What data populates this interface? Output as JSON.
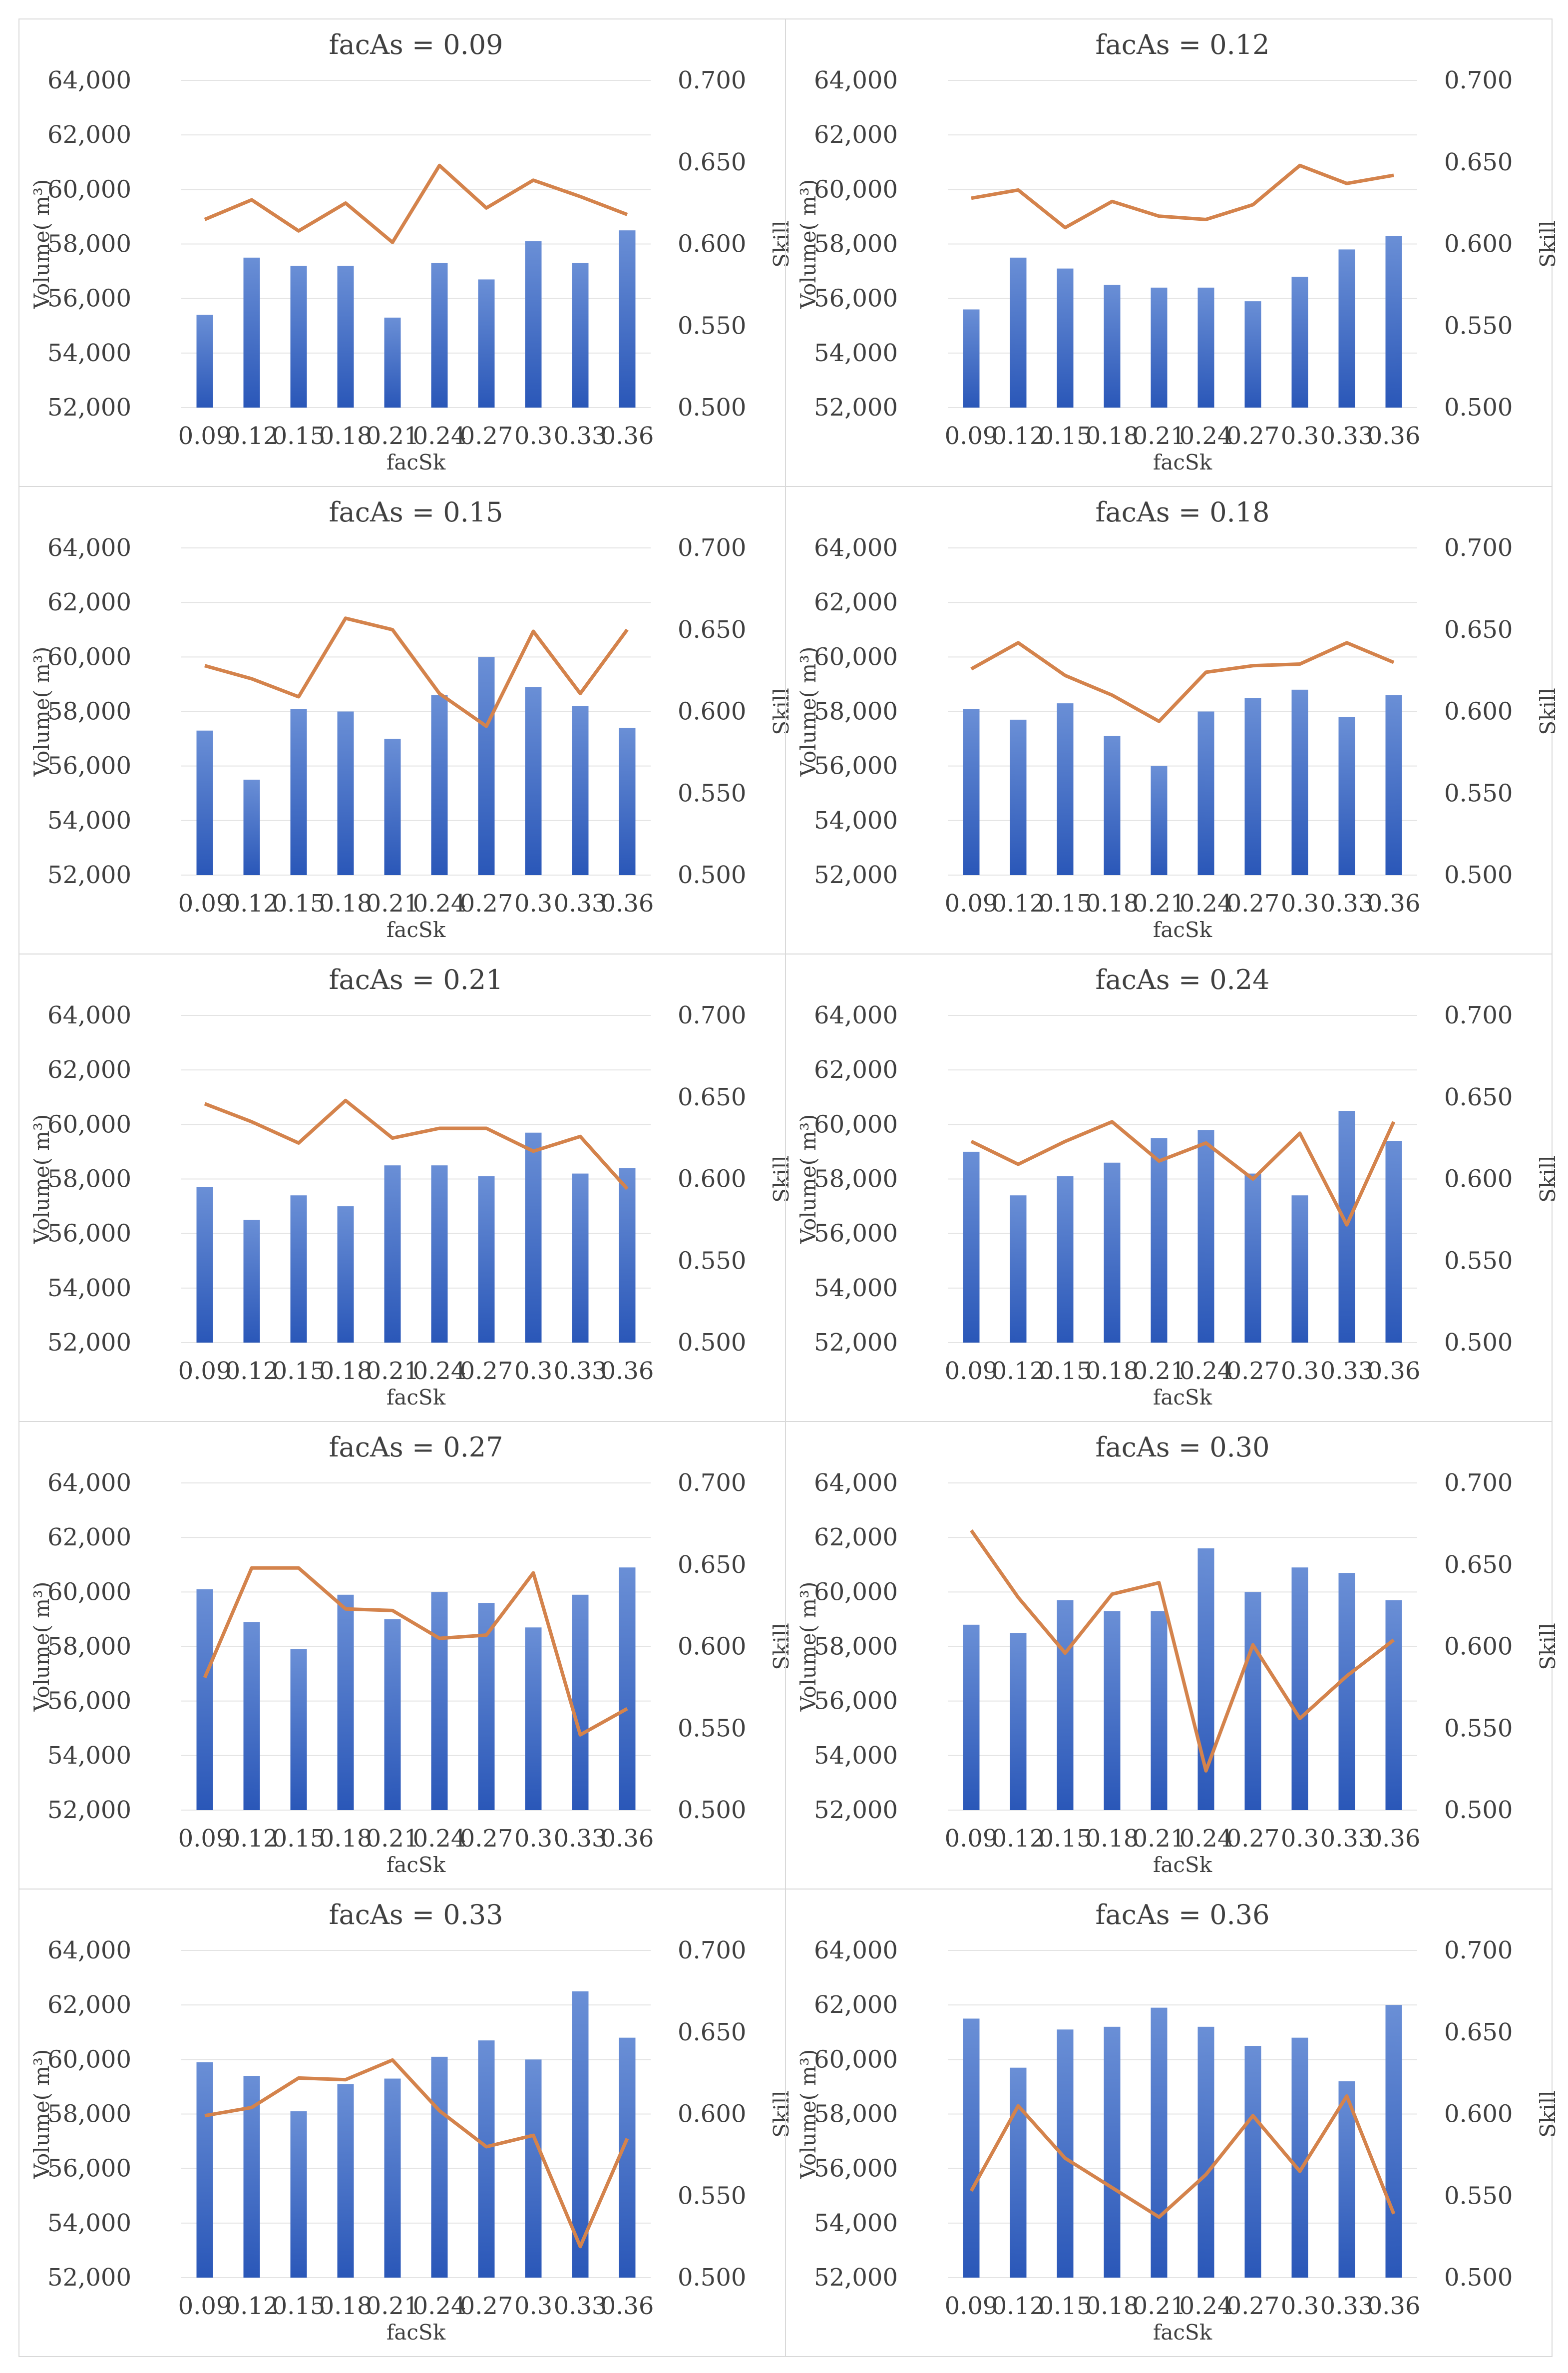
{
  "figure": {
    "y_left_label": "Volume( m³)",
    "y_right_label": "Skill",
    "x_label": "facSk",
    "colors": {
      "bar_top": "#6a8fd6",
      "bar_bottom": "#2a57b8",
      "line": "#d4834c"
    }
  },
  "chart_data": [
    {
      "type": "bar+line",
      "title": "facAs = 0.09",
      "categories": [
        "0.09",
        "0.12",
        "0.15",
        "0.18",
        "0.21",
        "0.24",
        "0.27",
        "0.3",
        "0.33",
        "0.36"
      ],
      "bars": [
        55400,
        57500,
        57200,
        57200,
        55300,
        57300,
        56700,
        58100,
        57300,
        58500
      ],
      "line": [
        0.615,
        0.627,
        0.608,
        0.625,
        0.601,
        0.648,
        0.622,
        0.639,
        0.629,
        0.618
      ],
      "ylim_left": [
        52000,
        64000
      ],
      "yticks_left": [
        "52,000",
        "54,000",
        "56,000",
        "58,000",
        "60,000",
        "62,000",
        "64,000"
      ],
      "ylim_right": [
        0.5,
        0.7
      ],
      "yticks_right": [
        "0.500",
        "0.550",
        "0.600",
        "0.650",
        "0.700"
      ],
      "xlabel": "facSk",
      "ylabel_left": "Volume( m³)",
      "ylabel_right": "Skill"
    },
    {
      "type": "bar+line",
      "title": "facAs = 0.12",
      "categories": [
        "0.09",
        "0.12",
        "0.15",
        "0.18",
        "0.21",
        "0.24",
        "0.27",
        "0.3",
        "0.33",
        "0.36"
      ],
      "bars": [
        55600,
        57500,
        57100,
        56500,
        56400,
        56400,
        55900,
        56800,
        57800,
        58300
      ],
      "line": [
        0.628,
        0.633,
        0.61,
        0.626,
        0.617,
        0.615,
        0.624,
        0.648,
        0.637,
        0.642
      ],
      "ylim_left": [
        52000,
        64000
      ],
      "yticks_left": [
        "52,000",
        "54,000",
        "56,000",
        "58,000",
        "60,000",
        "62,000",
        "64,000"
      ],
      "ylim_right": [
        0.5,
        0.7
      ],
      "yticks_right": [
        "0.500",
        "0.550",
        "0.600",
        "0.650",
        "0.700"
      ],
      "xlabel": "facSk",
      "ylabel_left": "Volume( m³)",
      "ylabel_right": "Skill"
    },
    {
      "type": "bar+line",
      "title": "facAs = 0.15",
      "categories": [
        "0.09",
        "0.12",
        "0.15",
        "0.18",
        "0.21",
        "0.24",
        "0.27",
        "0.3",
        "0.33",
        "0.36"
      ],
      "bars": [
        57300,
        55500,
        58100,
        58000,
        57000,
        58600,
        60000,
        58900,
        58200,
        57400
      ],
      "line": [
        0.628,
        0.62,
        0.609,
        0.657,
        0.65,
        0.611,
        0.591,
        0.649,
        0.611,
        0.65
      ],
      "ylim_left": [
        52000,
        64000
      ],
      "yticks_left": [
        "52,000",
        "54,000",
        "56,000",
        "58,000",
        "60,000",
        "62,000",
        "64,000"
      ],
      "ylim_right": [
        0.5,
        0.7
      ],
      "yticks_right": [
        "0.500",
        "0.550",
        "0.600",
        "0.650",
        "0.700"
      ],
      "xlabel": "facSk",
      "ylabel_left": "Volume( m³)",
      "ylabel_right": "Skill"
    },
    {
      "type": "bar+line",
      "title": "facAs = 0.18",
      "categories": [
        "0.09",
        "0.12",
        "0.15",
        "0.18",
        "0.21",
        "0.24",
        "0.27",
        "0.3",
        "0.33",
        "0.36"
      ],
      "bars": [
        58100,
        57700,
        58300,
        57100,
        56000,
        58000,
        58500,
        58800,
        57800,
        58600
      ],
      "line": [
        0.626,
        0.642,
        0.622,
        0.61,
        0.594,
        0.624,
        0.628,
        0.629,
        0.642,
        0.63
      ],
      "ylim_left": [
        52000,
        64000
      ],
      "yticks_left": [
        "52,000",
        "54,000",
        "56,000",
        "58,000",
        "60,000",
        "62,000",
        "64,000"
      ],
      "ylim_right": [
        0.5,
        0.7
      ],
      "yticks_right": [
        "0.500",
        "0.550",
        "0.600",
        "0.650",
        "0.700"
      ],
      "xlabel": "facSk",
      "ylabel_left": "Volume( m³)",
      "ylabel_right": "Skill"
    },
    {
      "type": "bar+line",
      "title": "facAs = 0.21",
      "categories": [
        "0.09",
        "0.12",
        "0.15",
        "0.18",
        "0.21",
        "0.24",
        "0.27",
        "0.3",
        "0.33",
        "0.36"
      ],
      "bars": [
        57700,
        56500,
        57400,
        57000,
        58500,
        58500,
        58100,
        59700,
        58200,
        58400
      ],
      "line": [
        0.646,
        0.635,
        0.622,
        0.648,
        0.625,
        0.631,
        0.631,
        0.617,
        0.626,
        0.594
      ],
      "ylim_left": [
        52000,
        64000
      ],
      "yticks_left": [
        "52,000",
        "54,000",
        "56,000",
        "58,000",
        "60,000",
        "62,000",
        "64,000"
      ],
      "ylim_right": [
        0.5,
        0.7
      ],
      "yticks_right": [
        "0.500",
        "0.550",
        "0.600",
        "0.650",
        "0.700"
      ],
      "xlabel": "facSk",
      "ylabel_left": "Volume( m³)",
      "ylabel_right": "Skill"
    },
    {
      "type": "bar+line",
      "title": "facAs = 0.24",
      "categories": [
        "0.09",
        "0.12",
        "0.15",
        "0.18",
        "0.21",
        "0.24",
        "0.27",
        "0.3",
        "0.33",
        "0.36"
      ],
      "bars": [
        59000,
        57400,
        58100,
        58600,
        59500,
        59800,
        58200,
        57400,
        60500,
        59400
      ],
      "line": [
        0.623,
        0.609,
        0.623,
        0.635,
        0.611,
        0.622,
        0.6,
        0.628,
        0.572,
        0.635
      ],
      "ylim_left": [
        52000,
        64000
      ],
      "yticks_left": [
        "52,000",
        "54,000",
        "56,000",
        "58,000",
        "60,000",
        "62,000",
        "64,000"
      ],
      "ylim_right": [
        0.5,
        0.7
      ],
      "yticks_right": [
        "0.500",
        "0.550",
        "0.600",
        "0.650",
        "0.700"
      ],
      "xlabel": "facSk",
      "ylabel_left": "Volume( m³)",
      "ylabel_right": "Skill"
    },
    {
      "type": "bar+line",
      "title": "facAs = 0.27",
      "categories": [
        "0.09",
        "0.12",
        "0.15",
        "0.18",
        "0.21",
        "0.24",
        "0.27",
        "0.3",
        "0.33",
        "0.36"
      ],
      "bars": [
        60100,
        58900,
        57900,
        59900,
        59000,
        60000,
        59600,
        58700,
        59900,
        60900
      ],
      "line": [
        0.581,
        0.648,
        0.648,
        0.623,
        0.622,
        0.605,
        0.607,
        0.645,
        0.546,
        0.562
      ],
      "ylim_left": [
        52000,
        64000
      ],
      "yticks_left": [
        "52,000",
        "54,000",
        "56,000",
        "58,000",
        "60,000",
        "62,000",
        "64,000"
      ],
      "ylim_right": [
        0.5,
        0.7
      ],
      "yticks_right": [
        "0.500",
        "0.550",
        "0.600",
        "0.650",
        "0.700"
      ],
      "xlabel": "facSk",
      "ylabel_left": "Volume( m³)",
      "ylabel_right": "Skill"
    },
    {
      "type": "bar+line",
      "title": "facAs = 0.30",
      "categories": [
        "0.09",
        "0.12",
        "0.15",
        "0.18",
        "0.21",
        "0.24",
        "0.27",
        "0.3",
        "0.33",
        "0.36"
      ],
      "bars": [
        58800,
        58500,
        59700,
        59300,
        59300,
        61600,
        60000,
        60900,
        60700,
        59700
      ],
      "line": [
        0.671,
        0.63,
        0.596,
        0.632,
        0.639,
        0.524,
        0.601,
        0.556,
        0.582,
        0.604
      ],
      "ylim_left": [
        52000,
        64000
      ],
      "yticks_left": [
        "52,000",
        "54,000",
        "56,000",
        "58,000",
        "60,000",
        "62,000",
        "64,000"
      ],
      "ylim_right": [
        0.5,
        0.7
      ],
      "yticks_right": [
        "0.500",
        "0.550",
        "0.600",
        "0.650",
        "0.700"
      ],
      "xlabel": "facSk",
      "ylabel_left": "Volume( m³)",
      "ylabel_right": "Skill"
    },
    {
      "type": "bar+line",
      "title": "facAs = 0.33",
      "categories": [
        "0.09",
        "0.12",
        "0.15",
        "0.18",
        "0.21",
        "0.24",
        "0.27",
        "0.3",
        "0.33",
        "0.36"
      ],
      "bars": [
        59900,
        59400,
        58100,
        59100,
        59300,
        60100,
        60700,
        60000,
        62500,
        60800
      ],
      "line": [
        0.599,
        0.604,
        0.622,
        0.621,
        0.633,
        0.602,
        0.58,
        0.587,
        0.519,
        0.585
      ],
      "ylim_left": [
        52000,
        64000
      ],
      "yticks_left": [
        "52,000",
        "54,000",
        "56,000",
        "58,000",
        "60,000",
        "62,000",
        "64,000"
      ],
      "ylim_right": [
        0.5,
        0.7
      ],
      "yticks_right": [
        "0.500",
        "0.550",
        "0.600",
        "0.650",
        "0.700"
      ],
      "xlabel": "facSk",
      "ylabel_left": "Volume( m³)",
      "ylabel_right": "Skill"
    },
    {
      "type": "bar+line",
      "title": "facAs = 0.36",
      "categories": [
        "0.09",
        "0.12",
        "0.15",
        "0.18",
        "0.21",
        "0.24",
        "0.27",
        "0.3",
        "0.33",
        "0.36"
      ],
      "bars": [
        61500,
        59700,
        61100,
        61200,
        61900,
        61200,
        60500,
        60800,
        59200,
        62000
      ],
      "line": [
        0.553,
        0.605,
        0.573,
        0.555,
        0.537,
        0.563,
        0.599,
        0.565,
        0.611,
        0.539
      ],
      "ylim_left": [
        52000,
        64000
      ],
      "yticks_left": [
        "52,000",
        "54,000",
        "56,000",
        "58,000",
        "60,000",
        "62,000",
        "64,000"
      ],
      "ylim_right": [
        0.5,
        0.7
      ],
      "yticks_right": [
        "0.500",
        "0.550",
        "0.600",
        "0.650",
        "0.700"
      ],
      "xlabel": "facSk",
      "ylabel_left": "Volume( m³)",
      "ylabel_right": "Skill"
    }
  ]
}
